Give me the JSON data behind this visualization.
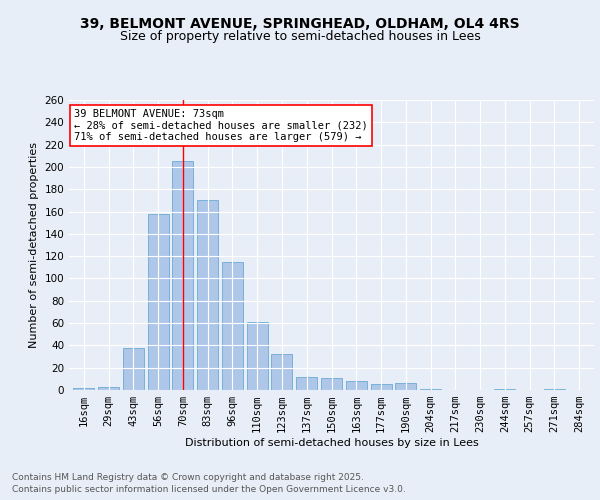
{
  "title": "39, BELMONT AVENUE, SPRINGHEAD, OLDHAM, OL4 4RS",
  "subtitle": "Size of property relative to semi-detached houses in Lees",
  "xlabel": "Distribution of semi-detached houses by size in Lees",
  "ylabel": "Number of semi-detached properties",
  "categories": [
    "16sqm",
    "29sqm",
    "43sqm",
    "56sqm",
    "70sqm",
    "83sqm",
    "96sqm",
    "110sqm",
    "123sqm",
    "137sqm",
    "150sqm",
    "163sqm",
    "177sqm",
    "190sqm",
    "204sqm",
    "217sqm",
    "230sqm",
    "244sqm",
    "257sqm",
    "271sqm",
    "284sqm"
  ],
  "values": [
    2,
    3,
    38,
    158,
    205,
    170,
    115,
    61,
    32,
    12,
    11,
    8,
    5,
    6,
    1,
    0,
    0,
    1,
    0,
    1,
    0
  ],
  "bar_color": "#aec6e8",
  "bar_edge_color": "#6aaad4",
  "vline_x": 4,
  "vline_color": "red",
  "annotation_title": "39 BELMONT AVENUE: 73sqm",
  "annotation_line1": "← 28% of semi-detached houses are smaller (232)",
  "annotation_line2": "71% of semi-detached houses are larger (579) →",
  "annotation_box_color": "white",
  "annotation_box_edgecolor": "red",
  "ylim": [
    0,
    260
  ],
  "yticks": [
    0,
    20,
    40,
    60,
    80,
    100,
    120,
    140,
    160,
    180,
    200,
    220,
    240,
    260
  ],
  "bg_color": "#e8eef7",
  "plot_bg_color": "#e8eef7",
  "footer_line1": "Contains HM Land Registry data © Crown copyright and database right 2025.",
  "footer_line2": "Contains public sector information licensed under the Open Government Licence v3.0.",
  "title_fontsize": 10,
  "subtitle_fontsize": 9,
  "axis_label_fontsize": 8,
  "tick_fontsize": 7.5,
  "annotation_fontsize": 7.5,
  "footer_fontsize": 6.5
}
